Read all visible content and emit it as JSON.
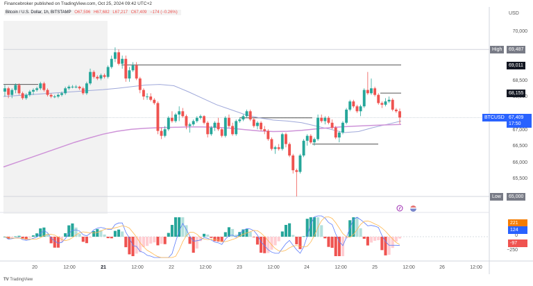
{
  "header": {
    "published": "Financebroker published on TradingView.com, Oct 25, 2024 09:42 UTC+2",
    "symbol": "Bitcoin / U.S. Dollar, 1h, BITSTAMP",
    "open": "O67,596",
    "high": "H67,682",
    "low": "L67,217",
    "close": "C67,409",
    "change": "−174 (−0.26%)"
  },
  "price_axis": {
    "currency": "USD",
    "labels": [
      {
        "text": "70,000",
        "price": 70000
      },
      {
        "text": "68,500",
        "price": 68500
      },
      {
        "text": "68,000",
        "price": 68000
      },
      {
        "text": "67,000",
        "price": 67000
      },
      {
        "text": "66,500",
        "price": 66500
      },
      {
        "text": "66,000",
        "price": 66000
      },
      {
        "text": "65,500",
        "price": 65500
      }
    ],
    "tags": {
      "high": {
        "label": "High",
        "value": "69,487",
        "price": 69487,
        "color": "#787b86"
      },
      "level1": {
        "value": "69,011",
        "price": 69011,
        "color": "#131722"
      },
      "level2": {
        "value": "68,155",
        "price": 68155,
        "color": "#131722"
      },
      "current": {
        "label": "BTCUSD",
        "value": "67,409",
        "countdown": "17:50",
        "price": 67409,
        "color": "#2962ff"
      },
      "low": {
        "label": "Low",
        "value": "65,000",
        "price": 65000,
        "color": "#787b86"
      }
    }
  },
  "macd_axis": {
    "tags": [
      {
        "value": "221",
        "color": "#f57c00"
      },
      {
        "value": "124",
        "color": "#2962ff"
      },
      {
        "value": "-97",
        "color": "#ef5350"
      }
    ],
    "labels": [
      "0",
      "−250"
    ]
  },
  "time_axis": {
    "labels": [
      {
        "text": "20",
        "x": 50,
        "bold": false
      },
      {
        "text": "12:00",
        "x": 100,
        "bold": false
      },
      {
        "text": "21",
        "x": 149,
        "bold": true
      },
      {
        "text": "12:00",
        "x": 198,
        "bold": false
      },
      {
        "text": "22",
        "x": 247,
        "bold": false
      },
      {
        "text": "12:00",
        "x": 296,
        "bold": false
      },
      {
        "text": "23",
        "x": 345,
        "bold": false
      },
      {
        "text": "12:00",
        "x": 394,
        "bold": false
      },
      {
        "text": "24",
        "x": 442,
        "bold": false
      },
      {
        "text": "12:00",
        "x": 491,
        "bold": false
      },
      {
        "text": "25",
        "x": 540,
        "bold": false
      },
      {
        "text": "12:00",
        "x": 589,
        "bold": false
      },
      {
        "text": "26",
        "x": 637,
        "bold": false
      },
      {
        "text": "12:00",
        "x": 686,
        "bold": false
      }
    ]
  },
  "footer": {
    "brand": "TradingView"
  },
  "colors": {
    "up": "#26a69a",
    "down": "#ef5350",
    "ma_fast": "#9fa8da",
    "ma_slow": "#ce93d8",
    "macd_line": "#5c7cfa",
    "signal_line": "#ffb74d",
    "hist_up_strong": "#26a69a",
    "hist_up_weak": "#b2dfdb",
    "hist_down_strong": "#ef5350",
    "hist_down_weak": "#ffcdd2",
    "level_line": "#555555",
    "shade": "#f2f2f2"
  },
  "chart_data": {
    "type": "candlestick",
    "title": "Bitcoin / U.S. Dollar, 1h, BITSTAMP",
    "xlabel": "",
    "ylabel": "USD",
    "ylim": [
      64900,
      70300
    ],
    "x_range": [
      "Oct 19 ~22:00",
      "Oct 25 ~09:00"
    ],
    "horizontal_levels": [
      {
        "price": 69011,
        "from_x": 175,
        "to_x": 578
      },
      {
        "price": 68155,
        "from_x": 548,
        "to_x": 578
      },
      {
        "price": 68420,
        "from_x": 5,
        "to_x": 55
      },
      {
        "price": 67400,
        "from_x": 345,
        "to_x": 450
      },
      {
        "price": 66600,
        "from_x": 450,
        "to_x": 545
      }
    ],
    "annotations": [
      "High 69,487",
      "Low 65,000"
    ],
    "ohlc_sampled": [
      [
        68200,
        68400,
        68050,
        68300
      ],
      [
        68300,
        68350,
        68000,
        68100
      ],
      [
        68100,
        68300,
        68000,
        68250
      ],
      [
        68250,
        68450,
        68150,
        68400
      ],
      [
        68400,
        68450,
        68100,
        68150
      ],
      [
        68150,
        68200,
        67950,
        68000
      ],
      [
        68000,
        68150,
        67950,
        68100
      ],
      [
        68100,
        68250,
        68050,
        68200
      ],
      [
        68200,
        68300,
        68100,
        68250
      ],
      [
        68250,
        68350,
        68200,
        68300
      ],
      [
        68300,
        68500,
        68250,
        68450
      ],
      [
        68450,
        68500,
        68200,
        68250
      ],
      [
        68250,
        68300,
        68050,
        68100
      ],
      [
        68100,
        68150,
        68000,
        68050
      ],
      [
        68050,
        68100,
        68000,
        68050
      ],
      [
        68050,
        68150,
        68000,
        68100
      ],
      [
        68100,
        68200,
        68050,
        68150
      ],
      [
        68150,
        68350,
        68100,
        68300
      ],
      [
        68300,
        68400,
        68250,
        68350
      ],
      [
        68350,
        68400,
        68300,
        68350
      ],
      [
        68350,
        68400,
        68300,
        68350
      ],
      [
        68350,
        68380,
        68250,
        68300
      ],
      [
        68300,
        68350,
        68100,
        68150
      ],
      [
        68150,
        68500,
        68100,
        68450
      ],
      [
        68450,
        68900,
        68400,
        68800
      ],
      [
        68800,
        68850,
        68600,
        68650
      ],
      [
        68650,
        68700,
        68550,
        68600
      ],
      [
        68600,
        68750,
        68550,
        68700
      ],
      [
        68700,
        68750,
        68600,
        68650
      ],
      [
        68650,
        69000,
        68600,
        68950
      ],
      [
        68950,
        69300,
        68900,
        69200
      ],
      [
        69200,
        69550,
        69100,
        69400
      ],
      [
        69400,
        69487,
        69000,
        69050
      ],
      [
        69050,
        69300,
        68900,
        69200
      ],
      [
        69200,
        69300,
        68500,
        68600
      ],
      [
        68600,
        68950,
        68500,
        68850
      ],
      [
        68850,
        69100,
        68800,
        69000
      ],
      [
        69000,
        69100,
        68550,
        68600
      ],
      [
        68600,
        68650,
        68150,
        68250
      ],
      [
        68250,
        68300,
        67950,
        68050
      ],
      [
        68050,
        68150,
        67950,
        68050
      ],
      [
        68050,
        68150,
        67900,
        67950
      ],
      [
        67950,
        68000,
        67800,
        67850
      ],
      [
        67850,
        67900,
        66900,
        67000
      ],
      [
        67000,
        67100,
        66750,
        66850
      ],
      [
        66850,
        67150,
        66800,
        67050
      ],
      [
        67050,
        67450,
        67000,
        67400
      ],
      [
        67400,
        67600,
        67250,
        67300
      ],
      [
        67300,
        67550,
        67250,
        67500
      ],
      [
        67500,
        67750,
        67300,
        67600
      ],
      [
        67600,
        67700,
        67400,
        67450
      ],
      [
        67450,
        67500,
        67050,
        67150
      ],
      [
        67150,
        67250,
        66950,
        67200
      ],
      [
        67200,
        67350,
        67150,
        67300
      ],
      [
        67300,
        67450,
        67250,
        67400
      ],
      [
        67400,
        67500,
        67350,
        67450
      ],
      [
        67450,
        67480,
        67200,
        67250
      ],
      [
        67250,
        67300,
        66800,
        66900
      ],
      [
        66900,
        67150,
        66850,
        67100
      ],
      [
        67100,
        67300,
        67000,
        67250
      ],
      [
        67250,
        67400,
        67000,
        67050
      ],
      [
        67050,
        67100,
        66800,
        66850
      ],
      [
        66850,
        67450,
        66800,
        67400
      ],
      [
        67400,
        67500,
        67100,
        67150
      ],
      [
        67150,
        67250,
        66850,
        66900
      ],
      [
        66900,
        67350,
        66850,
        67300
      ],
      [
        67300,
        67400,
        67250,
        67350
      ],
      [
        67350,
        67500,
        67300,
        67450
      ],
      [
        67450,
        67650,
        67400,
        67600
      ],
      [
        67600,
        67650,
        67300,
        67350
      ],
      [
        67350,
        67400,
        67100,
        67150
      ],
      [
        67150,
        67300,
        67050,
        67250
      ],
      [
        67250,
        67300,
        67000,
        67050
      ],
      [
        67050,
        67150,
        66900,
        67000
      ],
      [
        67000,
        67050,
        66700,
        66750
      ],
      [
        66750,
        66800,
        66400,
        66450
      ],
      [
        66450,
        66550,
        66300,
        66500
      ],
      [
        66500,
        66600,
        66400,
        66450
      ],
      [
        66450,
        66950,
        66400,
        66900
      ],
      [
        66900,
        66950,
        66500,
        66600
      ],
      [
        66600,
        66650,
        66200,
        66250
      ],
      [
        66250,
        66300,
        65700,
        65800
      ],
      [
        65800,
        65850,
        65000,
        65750
      ],
      [
        65750,
        66300,
        65700,
        66250
      ],
      [
        66250,
        66750,
        66200,
        66700
      ],
      [
        66700,
        66900,
        66550,
        66850
      ],
      [
        66850,
        66900,
        66600,
        66650
      ],
      [
        66650,
        66800,
        66550,
        66750
      ],
      [
        66750,
        67500,
        66700,
        67400
      ],
      [
        67400,
        67500,
        67250,
        67300
      ],
      [
        67300,
        67450,
        67200,
        67400
      ],
      [
        67400,
        67450,
        67200,
        67250
      ],
      [
        67250,
        67350,
        67050,
        67100
      ],
      [
        67100,
        67150,
        66750,
        66800
      ],
      [
        66800,
        67000,
        66650,
        66950
      ],
      [
        66950,
        67300,
        66900,
        67250
      ],
      [
        67250,
        67700,
        67200,
        67650
      ],
      [
        67650,
        67950,
        67600,
        67900
      ],
      [
        67900,
        67950,
        67700,
        67750
      ],
      [
        67750,
        67800,
        67550,
        67600
      ],
      [
        67600,
        67800,
        67450,
        67750
      ],
      [
        67750,
        68300,
        67700,
        68250
      ],
      [
        68250,
        68800,
        68100,
        68150
      ],
      [
        68150,
        68600,
        68100,
        68300
      ],
      [
        68300,
        68350,
        68050,
        68100
      ],
      [
        68100,
        68150,
        67800,
        67850
      ],
      [
        67850,
        67900,
        67700,
        67800
      ],
      [
        67800,
        68000,
        67750,
        67900
      ],
      [
        67900,
        68050,
        67850,
        67950
      ],
      [
        67950,
        68000,
        67600,
        67650
      ],
      [
        67650,
        67700,
        67550,
        67600
      ],
      [
        67600,
        67682,
        67217,
        67409
      ]
    ],
    "ma_fast": [
      68050,
      68080,
      68110,
      68140,
      68170,
      68200,
      68230,
      68260,
      68300,
      68350,
      68400,
      68420,
      68380,
      68200,
      68000,
      67800,
      67650,
      67500,
      67400,
      67330,
      67300,
      67250,
      67150,
      67050,
      66950,
      66980,
      67100,
      67200,
      67300
    ],
    "ma_slow": [
      65900,
      66050,
      66200,
      66350,
      66500,
      66650,
      66780,
      66900,
      66990,
      67050,
      67080,
      67100,
      67110,
      67120,
      67120,
      67110,
      67080,
      67040,
      67000,
      66980,
      66990,
      67020,
      67060,
      67100,
      67130,
      67150,
      67170,
      67185,
      67200
    ],
    "macd": {
      "macd_line_last": 124,
      "signal_last": 221,
      "histogram_last": -97,
      "ylim": [
        -350,
        350
      ]
    }
  }
}
